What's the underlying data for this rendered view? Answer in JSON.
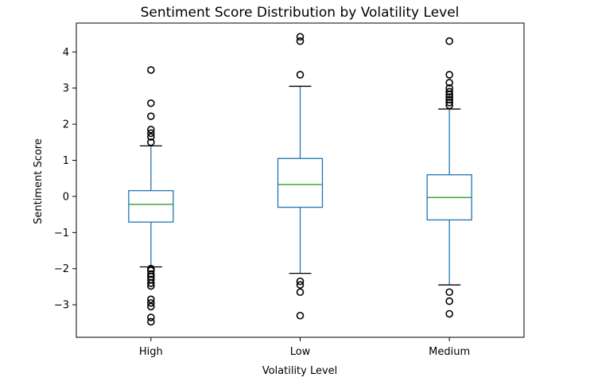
{
  "chart_data": {
    "type": "box",
    "title": "Sentiment Score Distribution by Volatility Level",
    "xlabel": "Volatility Level",
    "ylabel": "Sentiment Score",
    "ylim": [
      -3.9,
      4.8
    ],
    "yticks": [
      -3,
      -2,
      -1,
      0,
      1,
      2,
      3,
      4
    ],
    "grid": false,
    "legend": "none",
    "box_color": "#1f77b4",
    "median_color": "#2ca02c",
    "flier_color": "#000000",
    "categories": [
      "High",
      "Low",
      "Medium"
    ],
    "boxes": [
      {
        "category": "High",
        "whisker_low": -1.95,
        "q1": -0.71,
        "median": -0.22,
        "q3": 0.16,
        "whisker_high": 1.4,
        "outliers": [
          3.5,
          2.58,
          2.22,
          1.85,
          1.75,
          1.65,
          1.5,
          -2.0,
          -2.05,
          -2.15,
          -2.22,
          -2.3,
          -2.4,
          -2.48,
          -2.85,
          -2.95,
          -3.05,
          -3.35,
          -3.47
        ]
      },
      {
        "category": "Low",
        "whisker_low": -2.13,
        "q1": -0.3,
        "median": 0.33,
        "q3": 1.05,
        "whisker_high": 3.05,
        "outliers": [
          4.42,
          4.3,
          3.37,
          -2.35,
          -2.45,
          -2.65,
          -3.3
        ]
      },
      {
        "category": "Medium",
        "whisker_low": -2.45,
        "q1": -0.65,
        "median": -0.03,
        "q3": 0.6,
        "whisker_high": 2.42,
        "outliers": [
          4.3,
          3.37,
          3.15,
          3.0,
          2.9,
          2.82,
          2.75,
          2.68,
          2.6,
          2.52,
          -2.65,
          -2.9,
          -3.25
        ]
      }
    ]
  }
}
